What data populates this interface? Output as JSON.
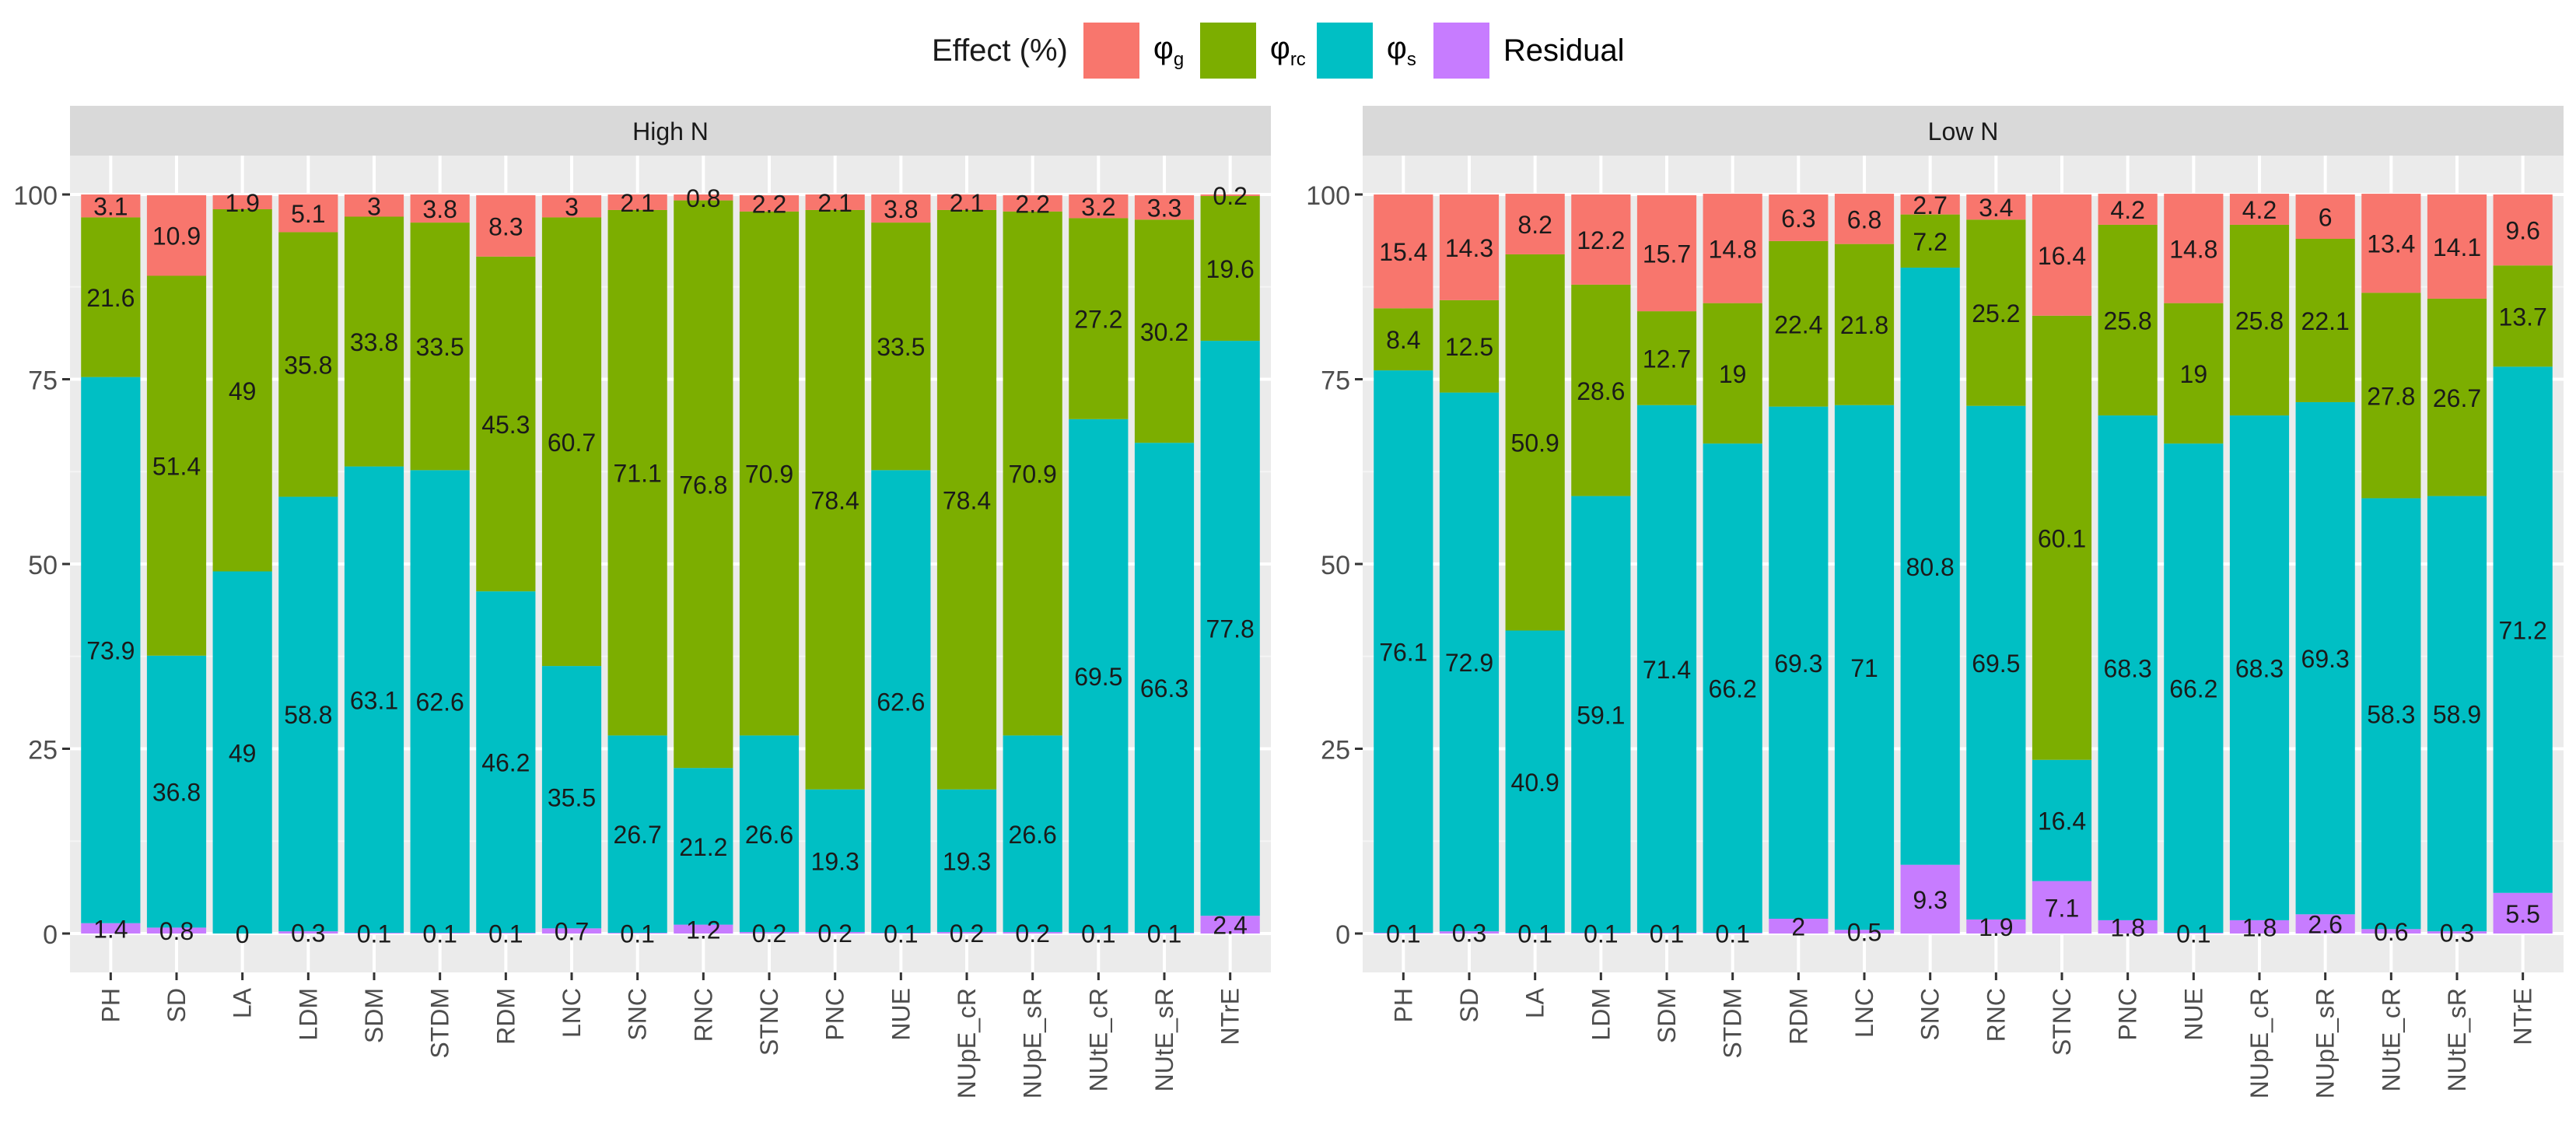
{
  "legend": {
    "title": "Effect (%)",
    "items": [
      {
        "key": "phi_g",
        "symbol": "φ",
        "subscript": "g",
        "color": "#F8766D"
      },
      {
        "key": "phi_rc",
        "symbol": "φ",
        "subscript": "rc",
        "color": "#7CAE00"
      },
      {
        "key": "phi_s",
        "symbol": "φ",
        "subscript": "s",
        "color": "#00BFC4"
      },
      {
        "key": "residual",
        "symbol": "Residual",
        "subscript": "",
        "color": "#C77CFF"
      }
    ]
  },
  "chart_data": [
    {
      "type": "bar",
      "stacked": true,
      "title": "High N",
      "categories": [
        "PH",
        "SD",
        "LA",
        "LDM",
        "SDM",
        "STDM",
        "RDM",
        "LNC",
        "SNC",
        "RNC",
        "STNC",
        "PNC",
        "NUE",
        "NUpE_cR",
        "NUpE_sR",
        "NUtE_cR",
        "NUtE_sR",
        "NTrE"
      ],
      "ylim": [
        0,
        100
      ],
      "yticks": [
        0,
        25,
        50,
        75,
        100
      ],
      "series": [
        {
          "name": "Residual",
          "key": "residual",
          "values": [
            1.4,
            0.8,
            0,
            0.3,
            0.1,
            0.1,
            0.1,
            0.7,
            0.1,
            1.2,
            0.2,
            0.2,
            0.1,
            0.2,
            0.2,
            0.1,
            0.1,
            2.4
          ]
        },
        {
          "name": "φs",
          "key": "phi_s",
          "values": [
            73.9,
            36.8,
            49,
            58.8,
            63.1,
            62.6,
            46.2,
            35.5,
            26.7,
            21.2,
            26.6,
            19.3,
            62.6,
            19.3,
            26.6,
            69.5,
            66.3,
            77.8
          ]
        },
        {
          "name": "φrc",
          "key": "phi_rc",
          "values": [
            21.6,
            51.4,
            49,
            35.8,
            33.8,
            33.5,
            45.3,
            60.7,
            71.1,
            76.8,
            70.9,
            78.4,
            33.5,
            78.4,
            70.9,
            27.2,
            30.2,
            19.6
          ]
        },
        {
          "name": "φg",
          "key": "phi_g",
          "values": [
            3.1,
            10.9,
            1.9,
            5.1,
            3,
            3.8,
            8.3,
            3,
            2.1,
            0.8,
            2.2,
            2.1,
            3.8,
            2.1,
            2.2,
            3.2,
            3.3,
            0.2
          ]
        }
      ]
    },
    {
      "type": "bar",
      "stacked": true,
      "title": "Low N",
      "categories": [
        "PH",
        "SD",
        "LA",
        "LDM",
        "SDM",
        "STDM",
        "RDM",
        "LNC",
        "SNC",
        "RNC",
        "STNC",
        "PNC",
        "NUE",
        "NUpE_cR",
        "NUpE_sR",
        "NUtE_cR",
        "NUtE_sR",
        "NTrE"
      ],
      "ylim": [
        0,
        100
      ],
      "yticks": [
        0,
        25,
        50,
        75,
        100
      ],
      "series": [
        {
          "name": "Residual",
          "key": "residual",
          "values": [
            0.1,
            0.3,
            0.1,
            0.1,
            0.1,
            0.1,
            2,
            0.5,
            9.3,
            1.9,
            7.1,
            1.8,
            0.1,
            1.8,
            2.6,
            0.6,
            0.3,
            5.5
          ]
        },
        {
          "name": "φs",
          "key": "phi_s",
          "values": [
            76.1,
            72.9,
            40.9,
            59.1,
            71.4,
            66.2,
            69.3,
            71,
            80.8,
            69.5,
            16.4,
            68.3,
            66.2,
            68.3,
            69.3,
            58.3,
            58.9,
            71.2
          ]
        },
        {
          "name": "φrc",
          "key": "phi_rc",
          "values": [
            8.4,
            12.5,
            50.9,
            28.6,
            12.7,
            19,
            22.4,
            21.8,
            7.2,
            25.2,
            60.1,
            25.8,
            19,
            25.8,
            22.1,
            27.8,
            26.7,
            13.7
          ]
        },
        {
          "name": "φg",
          "key": "phi_g",
          "values": [
            15.4,
            14.3,
            8.2,
            12.2,
            15.7,
            14.8,
            6.3,
            6.8,
            2.7,
            3.4,
            16.4,
            4.2,
            14.8,
            4.2,
            6,
            13.4,
            14.1,
            9.6
          ]
        }
      ]
    }
  ]
}
